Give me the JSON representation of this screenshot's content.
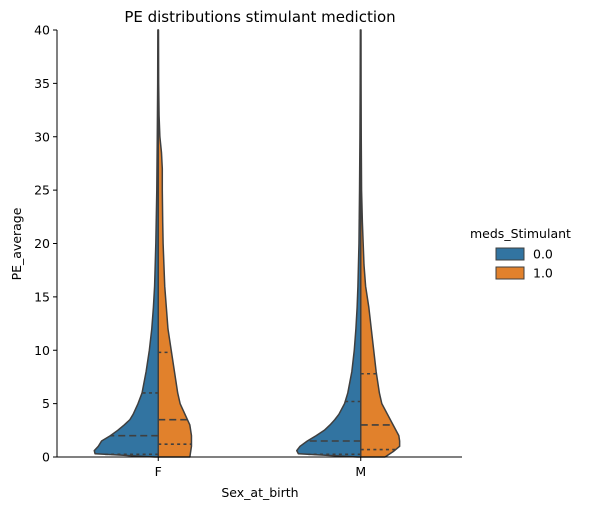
{
  "chart_data": {
    "type": "violin",
    "title": "PE distributions stimulant mediction",
    "xlabel": "Sex_at_birth",
    "ylabel": "PE_average",
    "categories": [
      "F",
      "M"
    ],
    "ylim": [
      0,
      40
    ],
    "yticks": [
      "0",
      "5",
      "10",
      "15",
      "20",
      "25",
      "30",
      "35",
      "40"
    ],
    "legend": {
      "title": "meds_Stimulant",
      "placement": "right",
      "entries": [
        "0.0",
        "1.0"
      ]
    },
    "series": [
      {
        "name": "0.0",
        "color": "#3274a1",
        "side": "left",
        "groups": [
          {
            "category": "F",
            "quartiles": [
              0.25,
              2.0,
              6.0
            ],
            "profile": [
              [
                0,
                0.04
              ],
              [
                0.3,
                0.78
              ],
              [
                0.6,
                0.79
              ],
              [
                1.0,
                0.74
              ],
              [
                1.5,
                0.7
              ],
              [
                2.0,
                0.59
              ],
              [
                2.5,
                0.5
              ],
              [
                3.0,
                0.42
              ],
              [
                3.5,
                0.35
              ],
              [
                4.0,
                0.31
              ],
              [
                5.0,
                0.25
              ],
              [
                6.0,
                0.2
              ],
              [
                8.0,
                0.15
              ],
              [
                10.0,
                0.11
              ],
              [
                12.0,
                0.08
              ],
              [
                14.0,
                0.06
              ],
              [
                16.0,
                0.045
              ],
              [
                20.0,
                0.03
              ],
              [
                25.0,
                0.018
              ],
              [
                30.0,
                0.012
              ],
              [
                35.0,
                0.007
              ],
              [
                40.0,
                0.005
              ]
            ]
          },
          {
            "category": "M",
            "quartiles": [
              0.25,
              1.5,
              5.2
            ],
            "profile": [
              [
                0,
                0.04
              ],
              [
                0.3,
                0.77
              ],
              [
                0.6,
                0.79
              ],
              [
                1.0,
                0.75
              ],
              [
                1.5,
                0.66
              ],
              [
                2.0,
                0.55
              ],
              [
                2.5,
                0.45
              ],
              [
                3.0,
                0.38
              ],
              [
                3.5,
                0.32
              ],
              [
                4.0,
                0.27
              ],
              [
                5.0,
                0.2
              ],
              [
                6.0,
                0.16
              ],
              [
                8.0,
                0.11
              ],
              [
                10.0,
                0.08
              ],
              [
                12.0,
                0.06
              ],
              [
                14.0,
                0.045
              ],
              [
                16.0,
                0.035
              ],
              [
                20.0,
                0.022
              ],
              [
                25.0,
                0.015
              ],
              [
                30.0,
                0.01
              ],
              [
                35.0,
                0.007
              ],
              [
                40.0,
                0.005
              ]
            ]
          }
        ]
      },
      {
        "name": "1.0",
        "color": "#e1812c",
        "side": "right",
        "groups": [
          {
            "category": "F",
            "quartiles": [
              1.2,
              3.5,
              9.8
            ],
            "profile": [
              [
                0,
                0.39
              ],
              [
                0.5,
                0.4
              ],
              [
                1.0,
                0.41
              ],
              [
                2.0,
                0.41
              ],
              [
                3.0,
                0.39
              ],
              [
                4.0,
                0.33
              ],
              [
                5.0,
                0.27
              ],
              [
                6.0,
                0.24
              ],
              [
                7.0,
                0.22
              ],
              [
                8.0,
                0.2
              ],
              [
                10.0,
                0.16
              ],
              [
                12.0,
                0.12
              ],
              [
                14.0,
                0.1
              ],
              [
                16.0,
                0.08
              ],
              [
                18.0,
                0.07
              ],
              [
                20.0,
                0.06
              ],
              [
                22.0,
                0.055
              ],
              [
                25.0,
                0.05
              ],
              [
                27.0,
                0.05
              ],
              [
                28.5,
                0.04
              ],
              [
                30.0,
                0.02
              ],
              [
                32.0,
                0.01
              ],
              [
                35.0,
                0.005
              ],
              [
                40.0,
                0.003
              ]
            ]
          },
          {
            "category": "M",
            "quartiles": [
              0.7,
              3.0,
              7.8
            ],
            "profile": [
              [
                0,
                0.3
              ],
              [
                0.5,
                0.4
              ],
              [
                1.0,
                0.48
              ],
              [
                1.5,
                0.48
              ],
              [
                2.0,
                0.47
              ],
              [
                3.0,
                0.4
              ],
              [
                4.0,
                0.33
              ],
              [
                5.0,
                0.26
              ],
              [
                6.0,
                0.23
              ],
              [
                8.0,
                0.19
              ],
              [
                10.0,
                0.16
              ],
              [
                12.0,
                0.13
              ],
              [
                14.0,
                0.1
              ],
              [
                15.0,
                0.08
              ],
              [
                16.0,
                0.06
              ],
              [
                18.0,
                0.04
              ],
              [
                20.0,
                0.03
              ],
              [
                22.0,
                0.02
              ],
              [
                25.0,
                0.01
              ],
              [
                30.0,
                0.006
              ],
              [
                35.0,
                0.004
              ],
              [
                40.0,
                0.003
              ]
            ]
          }
        ]
      }
    ]
  }
}
